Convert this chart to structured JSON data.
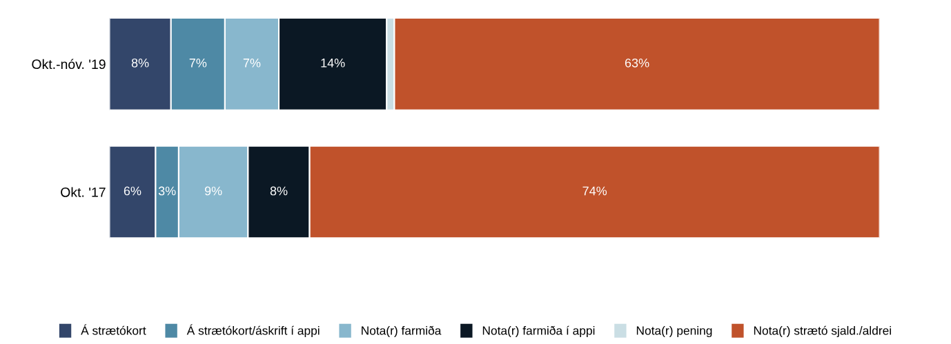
{
  "chart_data": {
    "type": "bar",
    "orientation": "horizontal",
    "stacked": true,
    "categories": [
      "Okt.-nóv. '19",
      "Okt. '17"
    ],
    "series": [
      {
        "name": "Á strætókort",
        "color": "#33466a",
        "values": [
          8,
          6
        ],
        "value_labels": [
          "8%",
          "6%"
        ]
      },
      {
        "name": "Á strætókort/áskrift í appi",
        "color": "#4e89a5",
        "values": [
          7,
          3
        ],
        "value_labels": [
          "7%",
          "3%"
        ]
      },
      {
        "name": "Nota(r) farmiða",
        "color": "#88b7cd",
        "values": [
          7,
          9
        ],
        "value_labels": [
          "7%",
          "9%"
        ]
      },
      {
        "name": "Nota(r) farmiða í appi",
        "color": "#0b1824",
        "values": [
          14,
          8
        ],
        "value_labels": [
          "14%",
          "8%"
        ]
      },
      {
        "name": "Nota(r) pening",
        "color": "#cadee4",
        "values": [
          1,
          0
        ],
        "value_labels": [
          null,
          null
        ]
      },
      {
        "name": "Nota(r) strætó sjald./aldrei",
        "color": "#c0522b",
        "values": [
          63,
          74
        ],
        "value_labels": [
          "63%",
          "74%"
        ]
      }
    ],
    "xlim": [
      0,
      100
    ],
    "tick_labels": "y",
    "grid": false,
    "legend": "bottom"
  }
}
